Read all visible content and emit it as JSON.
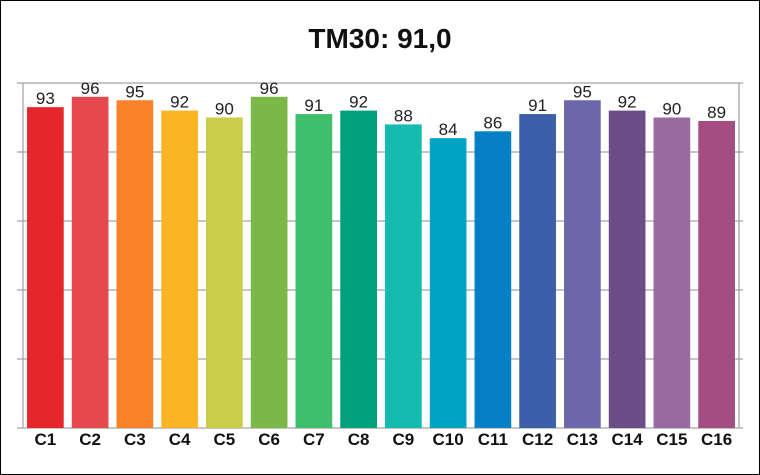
{
  "chart_data": {
    "type": "bar",
    "title": "TM30: 91,0",
    "categories": [
      "C1",
      "C2",
      "C3",
      "C4",
      "C5",
      "C6",
      "C7",
      "C8",
      "C9",
      "C10",
      "C11",
      "C12",
      "C13",
      "C14",
      "C15",
      "C16"
    ],
    "values": [
      93,
      96,
      95,
      92,
      90,
      96,
      91,
      92,
      88,
      84,
      86,
      91,
      95,
      92,
      90,
      89
    ],
    "colors": [
      "#e5262b",
      "#e5484d",
      "#f9812a",
      "#fcb424",
      "#c9cd4a",
      "#7bb848",
      "#3fbf6c",
      "#00a07a",
      "#14bcb0",
      "#00a3c2",
      "#0580c6",
      "#3b60a9",
      "#6e66aa",
      "#6b4d87",
      "#9a6aa3",
      "#a44d82"
    ],
    "ylim": [
      0,
      100
    ],
    "grid": true,
    "legend": "none"
  }
}
